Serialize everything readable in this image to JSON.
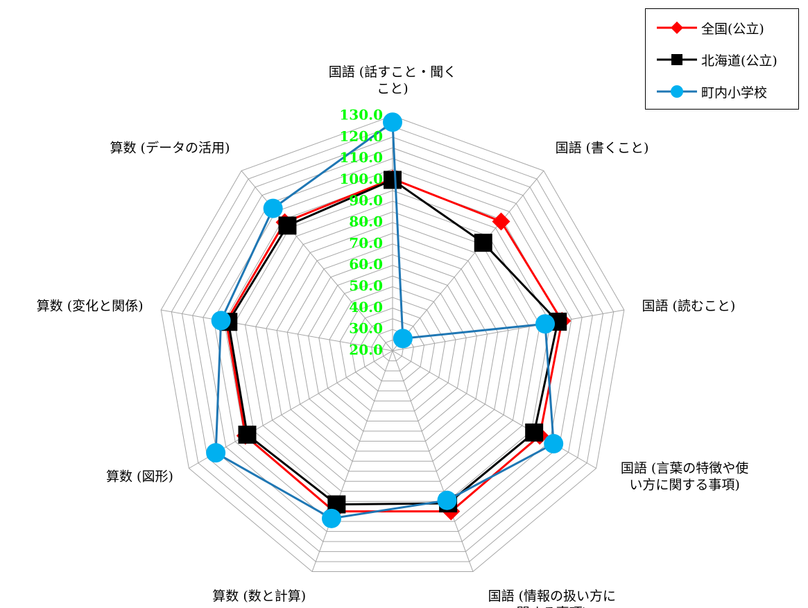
{
  "chart_data": {
    "type": "radar",
    "categories": [
      [
        "国語 (話すこと・聞く",
        "こと)"
      ],
      [
        "国語 (書くこと)"
      ],
      [
        "国語 (読むこと)"
      ],
      [
        "国語 (言葉の特徴や使",
        "い方に関する事項)"
      ],
      [
        "国語 (情報の扱い方に",
        "関する事項)"
      ],
      [
        "算数 (数と計算)"
      ],
      [
        "算数 (図形)"
      ],
      [
        "算数 (変化と関係)"
      ],
      [
        "算数 (データの活用)"
      ]
    ],
    "r_ticks": [
      "20.0",
      "30.0",
      "40.0",
      "50.0",
      "60.0",
      "70.0",
      "80.0",
      "90.0",
      "100.0",
      "110.0",
      "120.0",
      "130.0"
    ],
    "r_range": [
      20,
      130
    ],
    "series": [
      {
        "name": "全国(公立)",
        "color": "#ff0000",
        "marker": "diamond",
        "values": [
          100.5,
          99.0,
          100.5,
          99.5,
          100.0,
          100.0,
          99.5,
          99.0,
          98.5
        ]
      },
      {
        "name": "北海道(公立)",
        "color": "#000000",
        "marker": "square",
        "values": [
          100.0,
          86.0,
          98.5,
          96.5,
          96.0,
          96.5,
          98.5,
          98.0,
          96.5
        ]
      },
      {
        "name": "町内小学校",
        "color": "#1f77b4",
        "markerColor": "#00b0f0",
        "marker": "circle",
        "values": [
          127.0,
          27.5,
          92.5,
          107.0,
          94.5,
          103.5,
          115.5,
          101.5,
          107.0
        ]
      }
    ],
    "colors": {
      "tick_label": "#00ff00",
      "grid": "#a6a6a6"
    },
    "legend_position": "top-right"
  }
}
